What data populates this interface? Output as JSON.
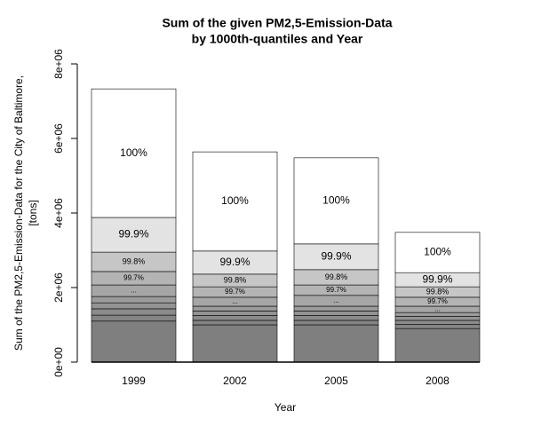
{
  "chart_data": {
    "type": "stacked-bar",
    "title": [
      "Sum of the given PM2,5-Emission-Data",
      "by 1000th-quantiles and Year"
    ],
    "x_label": "Year",
    "y_label": [
      "Sum of the PM2,5-Emission-Data for the City of Baltimore,",
      "[tons]"
    ],
    "categories": [
      "1999",
      "2002",
      "2005",
      "2008"
    ],
    "ylim": [
      0,
      8000000
    ],
    "yticks": [
      {
        "value": 0,
        "label": "0e+00"
      },
      {
        "value": 2000000,
        "label": "2e+06"
      },
      {
        "value": 4000000,
        "label": "4e+06"
      },
      {
        "value": 6000000,
        "label": "6e+06"
      },
      {
        "value": 8000000,
        "label": "8e+06"
      }
    ],
    "series": [
      {
        "name": null,
        "color": "#7f7f7f",
        "values": [
          1100000,
          1000000,
          1000000,
          900000
        ]
      },
      {
        "name": null,
        "color": "#848484",
        "values": [
          160000,
          120000,
          120000,
          110000
        ]
      },
      {
        "name": null,
        "color": "#8b8b8b",
        "values": [
          170000,
          130000,
          130000,
          110000
        ]
      },
      {
        "name": null,
        "color": "#939393",
        "values": [
          160000,
          120000,
          120000,
          110000
        ]
      },
      {
        "name": null,
        "color": "#9b9b9b",
        "values": [
          170000,
          130000,
          130000,
          100000
        ]
      },
      {
        "name": "...",
        "color": "#a6a6a6",
        "values": [
          310000,
          240000,
          290000,
          170000
        ]
      },
      {
        "name": "99.7%",
        "color": "#b4b4b4",
        "values": [
          360000,
          280000,
          280000,
          240000
        ]
      },
      {
        "name": "99.8%",
        "color": "#c6c6c6",
        "values": [
          520000,
          340000,
          410000,
          280000
        ]
      },
      {
        "name": "99.9%",
        "color": "#e3e3e3",
        "values": [
          930000,
          620000,
          690000,
          380000
        ]
      },
      {
        "name": "100%",
        "color": "#ffffff",
        "values": [
          3450000,
          2660000,
          2310000,
          1080000
        ]
      }
    ]
  }
}
